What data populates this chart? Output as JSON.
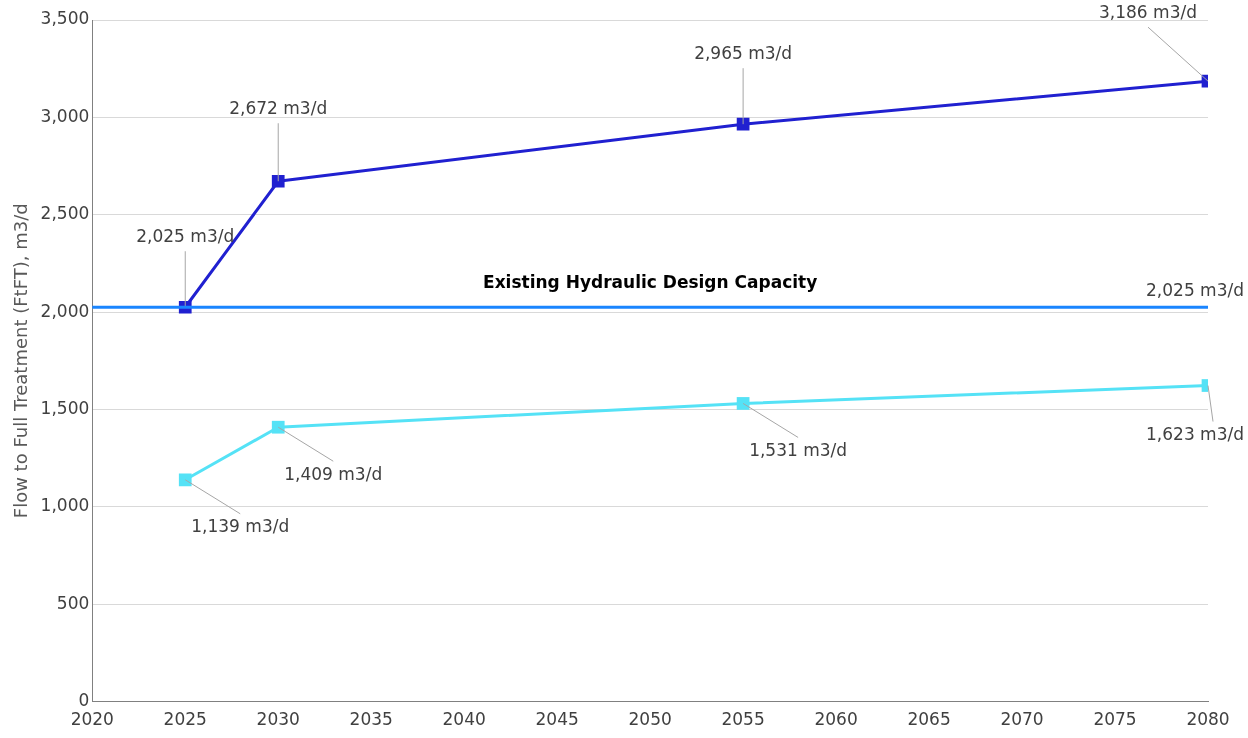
{
  "chart_data": {
    "type": "line",
    "ylabel": "Flow to Full Treatment (FtFT), m3/d",
    "x": [
      2025,
      2030,
      2055,
      2080
    ],
    "series": [
      {
        "color": "#2020d0",
        "values": [
          2025,
          2672,
          2965,
          3186
        ],
        "value_labels": [
          "2,025 m3/d",
          "2,672 m3/d",
          "2,965 m3/d",
          "3,186 m3/d"
        ]
      },
      {
        "color": "#55e2f6",
        "values": [
          1139,
          1409,
          1531,
          1623
        ],
        "value_labels": [
          "1,139 m3/d",
          "1,409 m3/d",
          "1,531 m3/d",
          "1,623 m3/d"
        ]
      }
    ],
    "xlim": [
      2020,
      2080
    ],
    "xticks": [
      2020,
      2025,
      2030,
      2035,
      2040,
      2045,
      2050,
      2055,
      2060,
      2065,
      2070,
      2075,
      2080
    ],
    "ylim": [
      0,
      3500
    ],
    "yticks": [
      {
        "value": 0,
        "label": "0"
      },
      {
        "value": 500,
        "label": "500"
      },
      {
        "value": 1000,
        "label": "1,000"
      },
      {
        "value": 1500,
        "label": "1,500"
      },
      {
        "value": 2000,
        "label": "2,000"
      },
      {
        "value": 2500,
        "label": "2,500"
      },
      {
        "value": 3000,
        "label": "3,000"
      },
      {
        "value": 3500,
        "label": "3,500"
      }
    ],
    "ref_lines": [
      {
        "axis": "y",
        "value": 2025,
        "label": "Existing Hydraulic Design Capacity",
        "color": "#1a85ff"
      }
    ],
    "annotations": [
      {
        "text": "2,025 m3/d",
        "x": 2080,
        "y": 2025
      }
    ],
    "grid": "y",
    "legend": false,
    "marker": "square",
    "line_style": "solid"
  }
}
